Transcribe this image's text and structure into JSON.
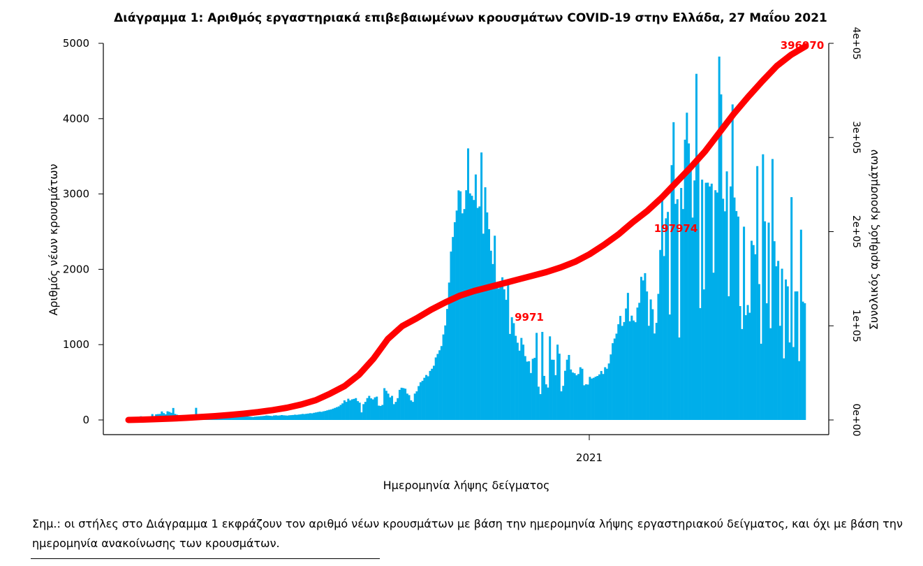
{
  "colors": {
    "bars": "#00aeea",
    "cumulative": "#ff0000"
  },
  "chart_data": {
    "type": "bar",
    "title": "Διάγραμμα 1: Αριθμός εργαστηριακά επιβεβαιωμένων κρουσμάτων COVID-19 στην Ελλάδα, 27 Μαΐου 2021",
    "xlabel": "Ημερομηνία λήψης δείγματος",
    "ylabel": "Αριθμός νέων κρουσμάτων",
    "y2label": "Συνολικός αριθμός κρουσμάτων",
    "ylim": [
      0,
      5000
    ],
    "y2lim": [
      0,
      400000
    ],
    "yticks": [
      "0",
      "1000",
      "2000",
      "3000",
      "4000",
      "5000"
    ],
    "y2ticks": [
      "0e+00",
      "1e+05",
      "2e+05",
      "3e+05",
      "4e+05"
    ],
    "xticks": [
      "2021"
    ],
    "grid": false,
    "series": [
      {
        "kind": "bar",
        "values": [
          22,
          20,
          21,
          25,
          20,
          22,
          49,
          28,
          30,
          28,
          35,
          32,
          78,
          29,
          75,
          78,
          80,
          113,
          90,
          75,
          115,
          107,
          95,
          159,
          80,
          70,
          60,
          65,
          55,
          50,
          45,
          42,
          50,
          48,
          52,
          161,
          70,
          60,
          52,
          50,
          48,
          45,
          40,
          42,
          38,
          40,
          44,
          46,
          42,
          40,
          38,
          36,
          40,
          42,
          45,
          40,
          38,
          40,
          42,
          44,
          46,
          48,
          50,
          45,
          42,
          40,
          44,
          46,
          48,
          50,
          52,
          55,
          60,
          58,
          55,
          52,
          60,
          62,
          58,
          60,
          65,
          62,
          60,
          58,
          62,
          64,
          66,
          70,
          68,
          72,
          75,
          80,
          78,
          82,
          85,
          90,
          88,
          95,
          100,
          105,
          110,
          108,
          115,
          120,
          128,
          135,
          140,
          150,
          160,
          170,
          180,
          200,
          220,
          260,
          240,
          282,
          260,
          274,
          280,
          290,
          250,
          230,
          101,
          210,
          240,
          290,
          320,
          287,
          273,
          300,
          310,
          190,
          186,
          200,
          422,
          387,
          350,
          300,
          320,
          210,
          240,
          290,
          400,
          428,
          423,
          415,
          350,
          330,
          260,
          240,
          350,
          380,
          450,
          500,
          520,
          560,
          597,
          580,
          651,
          680,
          720,
          830,
          877,
          925,
          981,
          1135,
          1255,
          1474,
          1824,
          2236,
          2429,
          2625,
          2780,
          3048,
          3035,
          2743,
          2800,
          3050,
          3605,
          3008,
          2976,
          2920,
          3259,
          2815,
          2835,
          3551,
          2473,
          3089,
          2755,
          2533,
          2247,
          2070,
          2446,
          1824,
          1747,
          1769,
          1894,
          1734,
          1595,
          1834,
          1142,
          1364,
          1285,
          1117,
          1025,
          920,
          1089,
          1000,
          848,
          775,
          779,
          623,
          812,
          825,
          1156,
          442,
          343,
          1169,
          585,
          473,
          430,
          1110,
          800,
          799,
          595,
          1000,
          880,
          380,
          453,
          653,
          800,
          863,
          670,
          630,
          620,
          593,
          610,
          700,
          680,
          460,
          474,
          470,
          572,
          550,
          560,
          574,
          584,
          605,
          650,
          610,
          700,
          680,
          750,
          870,
          1019,
          1081,
          1146,
          1271,
          1381,
          1249,
          1300,
          1480,
          1687,
          1310,
          1385,
          1320,
          1298,
          1492,
          1555,
          1900,
          1852,
          1949,
          1706,
          1250,
          1600,
          1470,
          1148,
          1289,
          1674,
          2257,
          2952,
          2176,
          2677,
          2762,
          1400,
          3383,
          3953,
          2869,
          2930,
          1095,
          3080,
          2800,
          3721,
          4079,
          3671,
          3370,
          2687,
          3180,
          4595,
          3482,
          1485,
          3190,
          1733,
          3149,
          3150,
          3100,
          3137,
          1955,
          3050,
          3019,
          4824,
          4322,
          2937,
          2770,
          3300,
          1642,
          3100,
          4189,
          2953,
          2773,
          2700,
          1512,
          1207,
          2566,
          1391,
          1526,
          1423,
          2379,
          2322,
          2200,
          3370,
          1804,
          1012,
          3527,
          2637,
          1549,
          2620,
          1218,
          3464,
          2373,
          2040,
          2112,
          1250,
          2008,
          818,
          1865,
          1774,
          1029,
          2958,
          968,
          1706,
          1707,
          781,
          2526,
          1571,
          1550
        ]
      },
      {
        "kind": "cumulative",
        "values": [
          0,
          400,
          900,
          1500,
          2200,
          3100,
          4100,
          5300,
          6700,
          8400,
          10500,
          13000,
          16500,
          21000,
          28000,
          36000,
          48000,
          65000,
          86000,
          99650,
          108000,
          117000,
          125000,
          132000,
          137000,
          141000,
          145000,
          149000,
          153000,
          157000,
          162000,
          168000,
          176000,
          186000,
          197000,
          210000,
          222000,
          236000,
          252000,
          268000,
          285000,
          305000,
          325000,
          343000,
          360000,
          376000,
          388000,
          396970
        ],
        "labels": [
          "9971",
          "197974",
          "396970"
        ]
      }
    ]
  },
  "note": "Σημ.: οι στήλες στο Διάγραμμα 1 εκφράζουν τον αριθμό νέων κρουσμάτων με βάση την ημερομηνία λήψης εργαστηριακού δείγματος, και όχι με βάση την ημερομηνία ανακοίνωσης των κρουσμάτων."
}
